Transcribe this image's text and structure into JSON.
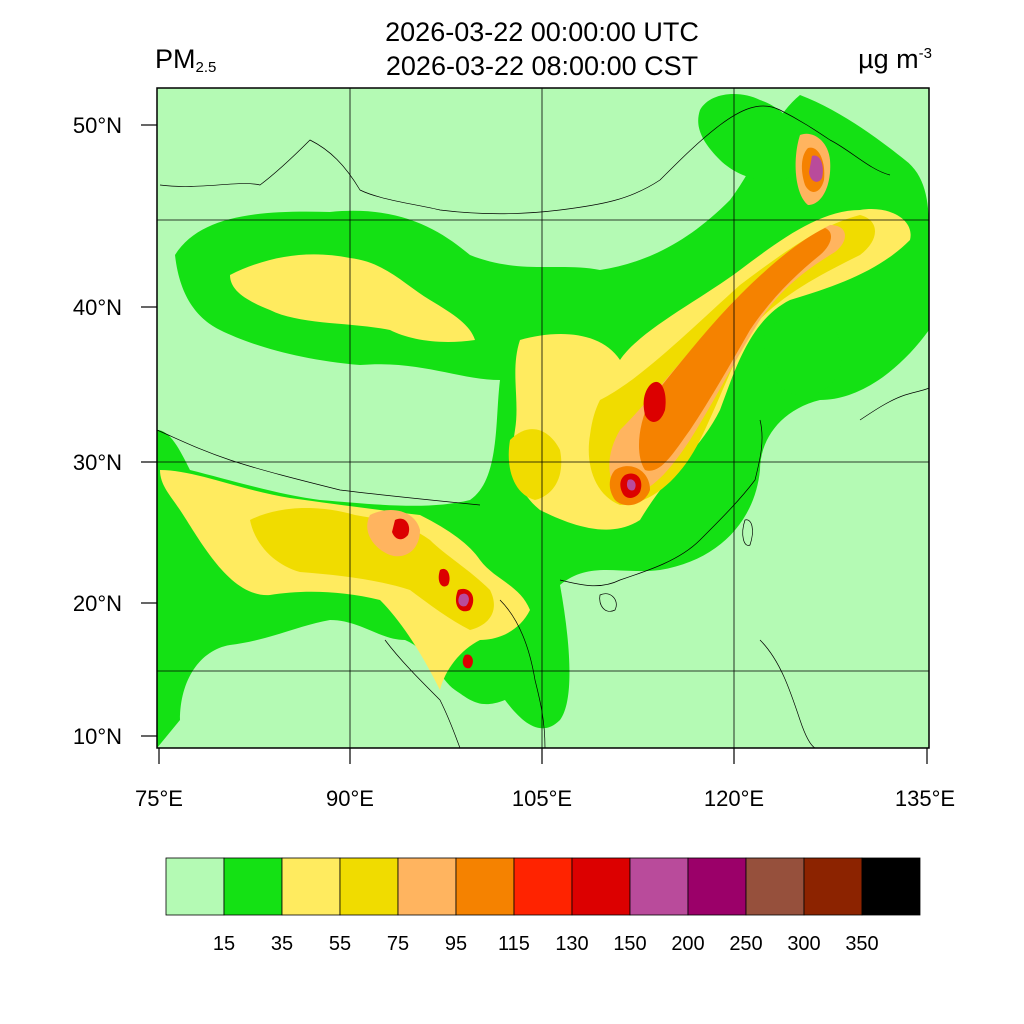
{
  "header": {
    "title_line1": "2026-03-22 00:00:00 UTC",
    "title_line2": "2026-03-22 08:00:00 CST",
    "variable_base": "PM",
    "variable_sub": "2.5",
    "unit_base": "µg m",
    "unit_sup": "-3"
  },
  "axes": {
    "lat_labels": [
      "50°N",
      "40°N",
      "30°N",
      "20°N",
      "10°N"
    ],
    "lon_labels": [
      "75°E",
      "90°E",
      "105°E",
      "120°E",
      "135°E"
    ]
  },
  "colorbar": {
    "colors": [
      "#b4fab4",
      "#14e114",
      "#ffeb5f",
      "#f0dc00",
      "#ffb45f",
      "#f58200",
      "#ff2300",
      "#dc0000",
      "#b94b9b",
      "#9b0069",
      "#96503c",
      "#8c2300",
      "#000000"
    ],
    "labels": [
      "15",
      "35",
      "55",
      "75",
      "95",
      "115",
      "130",
      "150",
      "200",
      "250",
      "300",
      "350"
    ]
  },
  "map": {
    "background_color": "#b4fab4"
  }
}
